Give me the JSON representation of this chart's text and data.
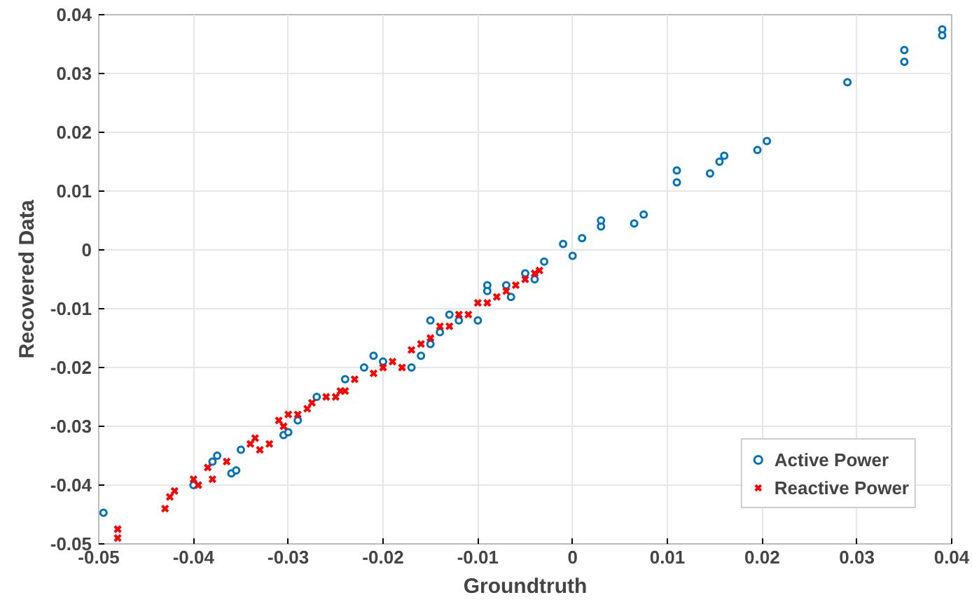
{
  "chart_data": {
    "type": "scatter",
    "xlabel": "Groundtruth",
    "ylabel": "Recovered Data",
    "xlim": [
      -0.05,
      0.04
    ],
    "ylim": [
      -0.05,
      0.04
    ],
    "xticks": [
      -0.05,
      -0.04,
      -0.03,
      -0.02,
      -0.01,
      0,
      0.01,
      0.02,
      0.03,
      0.04
    ],
    "yticks": [
      -0.05,
      -0.04,
      -0.03,
      -0.02,
      -0.01,
      0,
      0.01,
      0.02,
      0.03,
      0.04
    ],
    "grid": true,
    "legend": "bottom right",
    "series": [
      {
        "name": "Active Power",
        "color": "#0072bd",
        "marker": "circle",
        "x": [
          -0.0495,
          -0.038,
          -0.0375,
          -0.036,
          -0.0355,
          -0.035,
          -0.04,
          -0.0305,
          -0.03,
          -0.029,
          -0.027,
          -0.024,
          -0.022,
          -0.021,
          -0.02,
          -0.017,
          -0.016,
          -0.015,
          -0.015,
          -0.014,
          -0.013,
          -0.012,
          -0.01,
          -0.009,
          -0.009,
          -0.007,
          -0.0065,
          -0.005,
          -0.004,
          -0.003,
          -0.001,
          0.0,
          0.001,
          0.003,
          0.003,
          0.0065,
          0.0075,
          0.011,
          0.011,
          0.0145,
          0.0155,
          0.016,
          0.0195,
          0.0205,
          0.029,
          0.035,
          0.035,
          0.039,
          0.039
        ],
        "values": [
          -0.0447,
          -0.036,
          -0.035,
          -0.038,
          -0.0375,
          -0.034,
          -0.04,
          -0.0315,
          -0.031,
          -0.029,
          -0.025,
          -0.022,
          -0.02,
          -0.018,
          -0.019,
          -0.02,
          -0.018,
          -0.012,
          -0.016,
          -0.014,
          -0.011,
          -0.012,
          -0.012,
          -0.006,
          -0.007,
          -0.006,
          -0.008,
          -0.004,
          -0.005,
          -0.002,
          0.001,
          -0.001,
          0.002,
          0.004,
          0.005,
          0.0045,
          0.006,
          0.0135,
          0.0115,
          0.013,
          0.015,
          0.016,
          0.017,
          0.0185,
          0.0285,
          0.034,
          0.032,
          0.0375,
          0.0365
        ]
      },
      {
        "name": "Reactive Power",
        "color": "#ff0000",
        "marker": "cross",
        "x": [
          -0.048,
          -0.048,
          -0.043,
          -0.0425,
          -0.042,
          -0.04,
          -0.0395,
          -0.0385,
          -0.038,
          -0.0365,
          -0.034,
          -0.0335,
          -0.033,
          -0.032,
          -0.031,
          -0.0305,
          -0.03,
          -0.029,
          -0.028,
          -0.0275,
          -0.026,
          -0.025,
          -0.0245,
          -0.024,
          -0.023,
          -0.021,
          -0.02,
          -0.019,
          -0.018,
          -0.017,
          -0.016,
          -0.015,
          -0.014,
          -0.013,
          -0.012,
          -0.011,
          -0.01,
          -0.009,
          -0.008,
          -0.007,
          -0.006,
          -0.005,
          -0.004,
          -0.0035
        ],
        "values": [
          -0.0475,
          -0.049,
          -0.044,
          -0.042,
          -0.041,
          -0.039,
          -0.04,
          -0.037,
          -0.039,
          -0.036,
          -0.033,
          -0.032,
          -0.034,
          -0.033,
          -0.029,
          -0.03,
          -0.028,
          -0.028,
          -0.027,
          -0.026,
          -0.025,
          -0.025,
          -0.024,
          -0.024,
          -0.022,
          -0.021,
          -0.02,
          -0.019,
          -0.02,
          -0.017,
          -0.016,
          -0.015,
          -0.013,
          -0.013,
          -0.011,
          -0.011,
          -0.009,
          -0.009,
          -0.008,
          -0.007,
          -0.006,
          -0.005,
          -0.004,
          -0.0035
        ]
      }
    ]
  }
}
